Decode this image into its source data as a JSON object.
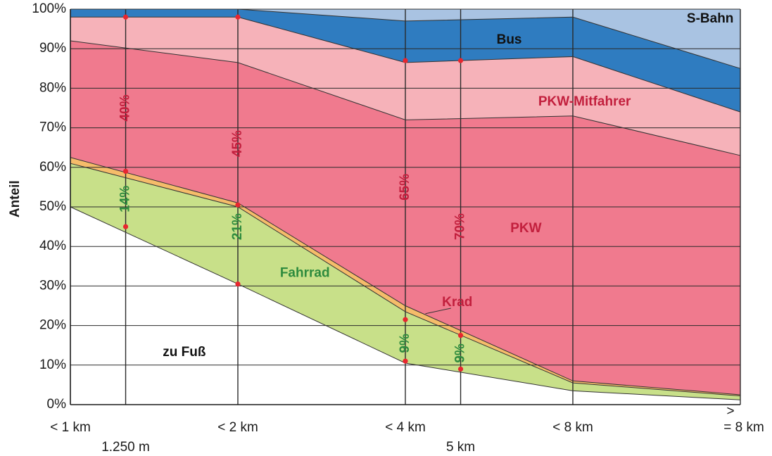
{
  "chart_data": {
    "type": "area",
    "stacked": true,
    "title": "",
    "xlabel": "",
    "ylabel": "Anteil",
    "ylim": [
      0,
      100
    ],
    "yticks": [
      "0%",
      "10%",
      "20%",
      "30%",
      "40%",
      "50%",
      "60%",
      "70%",
      "80%",
      "90%",
      "100%"
    ],
    "x_categories": [
      {
        "label": "< 1 km",
        "sublabel": ""
      },
      {
        "label": "< 2 km",
        "sublabel": ""
      },
      {
        "label": "< 4 km",
        "sublabel": ""
      },
      {
        "label": "< 8 km",
        "sublabel": ""
      },
      {
        "label": "= 8 km",
        "prefix": ">",
        "sublabel": ""
      }
    ],
    "x_positions": [
      0,
      1,
      2,
      3,
      4
    ],
    "special_distances": [
      {
        "position": 0.33,
        "label": "1.250 m"
      },
      {
        "position": 2.33,
        "label": "5 km"
      }
    ],
    "grid": true,
    "series": [
      {
        "name": "zu Fuß",
        "color": "#ffffff",
        "values": [
          50,
          30.5,
          10.5,
          3.5,
          1.2
        ]
      },
      {
        "name": "Fahrrad",
        "color": "#c8e089",
        "values": [
          11,
          19.5,
          13,
          2,
          1
        ]
      },
      {
        "name": "Krad",
        "color": "#f5bc6a",
        "values": [
          1.5,
          1,
          1.5,
          0.5,
          0.3
        ]
      },
      {
        "name": "PKW",
        "color": "#f07a8e",
        "values": [
          29.5,
          35.5,
          47,
          67,
          60.5
        ]
      },
      {
        "name": "PKW-Mitfahrer",
        "color": "#f6b2b9",
        "values": [
          6,
          11.5,
          14.5,
          15,
          11
        ]
      },
      {
        "name": "Bus",
        "color": "#2f7cc0",
        "values": [
          2,
          2,
          10.5,
          10,
          11
        ]
      },
      {
        "name": "S-Bahn",
        "color": "#a9c3e2",
        "values": [
          0,
          0,
          3,
          2,
          15
        ]
      }
    ],
    "series_labels": [
      {
        "series": "S-Bahn",
        "text": "S-Bahn",
        "x": 3.82,
        "y": 97.5,
        "color": "#111111"
      },
      {
        "series": "Bus",
        "text": "Bus",
        "x": 2.62,
        "y": 92.2,
        "color": "#111111"
      },
      {
        "series": "PKW-Mitfahrer",
        "text": "PKW-Mitfahrer",
        "x": 3.07,
        "y": 76.5,
        "color": "#c21f3d"
      },
      {
        "series": "PKW",
        "text": "PKW",
        "x": 2.72,
        "y": 44.5,
        "color": "#c21f3d"
      },
      {
        "series": "Krad",
        "text": "Krad",
        "x": 2.31,
        "y": 25.8,
        "color": "#c21f3d"
      },
      {
        "series": "Fahrrad",
        "text": "Fahrrad",
        "x": 1.4,
        "y": 33.2,
        "color": "#2e8b3e"
      },
      {
        "series": "zu Fuß",
        "text": "zu Fuß",
        "x": 0.68,
        "y": 13.2,
        "color": "#111111"
      }
    ],
    "annotations": [
      {
        "text": "40%",
        "x": 0.33,
        "y": 75,
        "color": "#c21f3d"
      },
      {
        "text": "45%",
        "x": 1,
        "y": 66,
        "color": "#c21f3d"
      },
      {
        "text": "65%",
        "x": 2,
        "y": 55,
        "color": "#c21f3d"
      },
      {
        "text": "70%",
        "x": 2.33,
        "y": 45,
        "color": "#c21f3d"
      },
      {
        "text": "14%",
        "x": 0.33,
        "y": 52,
        "color": "#2e8b3e"
      },
      {
        "text": "21%",
        "x": 1,
        "y": 45,
        "color": "#2e8b3e"
      },
      {
        "text": "9%",
        "x": 2,
        "y": 15.5,
        "color": "#2e8b3e"
      },
      {
        "text": "9%",
        "x": 2.33,
        "y": 13,
        "color": "#2e8b3e"
      }
    ],
    "markers": [
      {
        "x": 0.33,
        "y": 98
      },
      {
        "x": 0.33,
        "y": 59
      },
      {
        "x": 0.33,
        "y": 45
      },
      {
        "x": 1,
        "y": 98
      },
      {
        "x": 1,
        "y": 50.5
      },
      {
        "x": 1,
        "y": 30.5
      },
      {
        "x": 2,
        "y": 87
      },
      {
        "x": 2,
        "y": 21.5
      },
      {
        "x": 2,
        "y": 11
      },
      {
        "x": 2.33,
        "y": 87
      },
      {
        "x": 2.33,
        "y": 17.5
      },
      {
        "x": 2.33,
        "y": 9
      }
    ]
  }
}
